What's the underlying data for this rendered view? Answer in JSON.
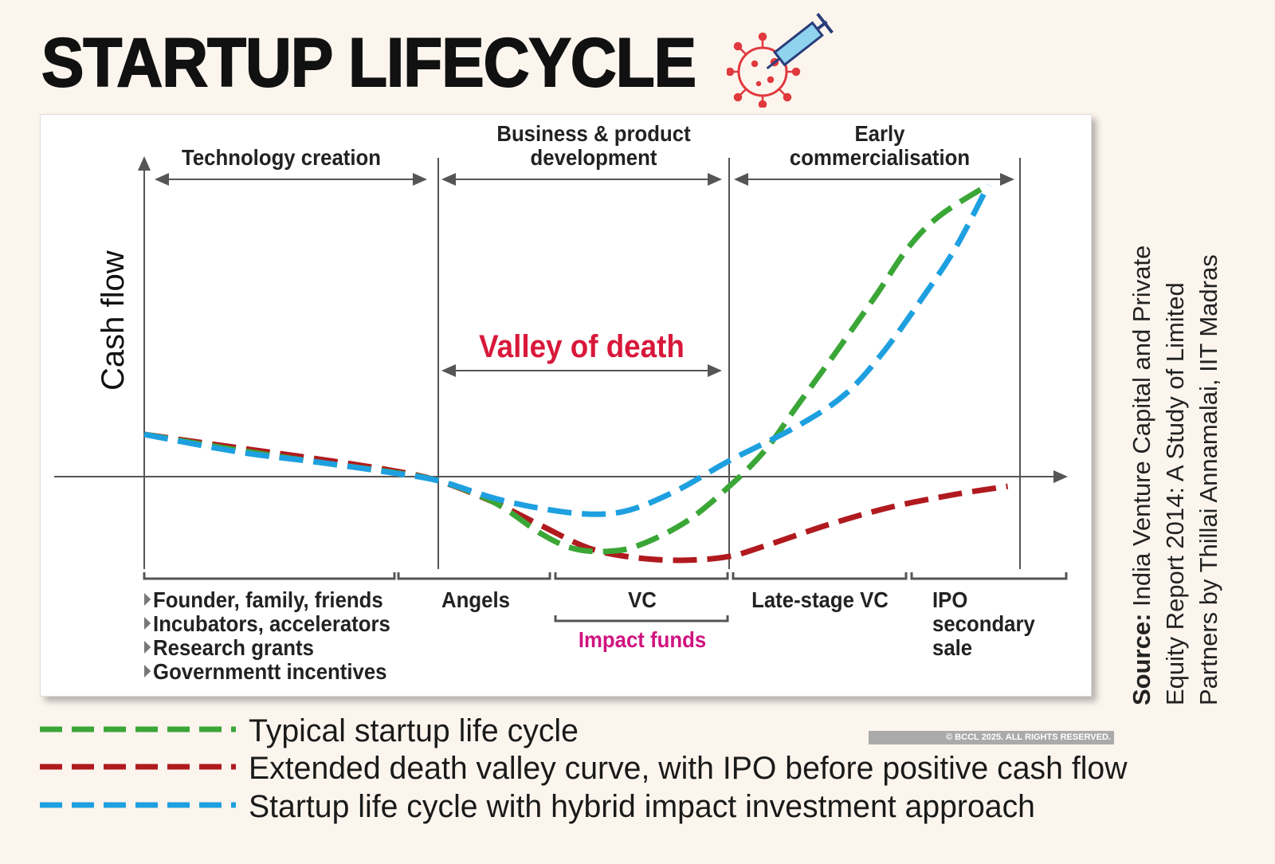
{
  "title": "STARTUP LIFECYCLE",
  "icons": {
    "title_icon": "virus-syringe-icon"
  },
  "chart_data": {
    "type": "line",
    "title": "STARTUP LIFECYCLE",
    "ylabel": "Cash flow",
    "xlabel": "",
    "xlim": [
      0,
      100
    ],
    "ylim": [
      -30,
      100
    ],
    "grid": false,
    "legend_placement": "bottom",
    "stages": [
      {
        "label": "Technology creation",
        "start": 0,
        "end": 33.6
      },
      {
        "label": "Business & product development",
        "line1": "Business & product",
        "line2": "development",
        "start": 33.6,
        "end": 66.8
      },
      {
        "label": "Early commercialisation",
        "line1": "Early",
        "line2": "commercialisation",
        "start": 66.8,
        "end": 100
      }
    ],
    "annotation": {
      "text": "Valley of death",
      "start": 33.6,
      "end": 66.8,
      "color": "#d8183a"
    },
    "funding": {
      "founder_items": [
        "Founder, family, friends",
        "Incubators, accelerators",
        "Research grants",
        "Governmentt incentives"
      ],
      "angels": "Angels",
      "vc": "VC",
      "impact": "Impact funds",
      "late_vc": "Late-stage VC",
      "ipo": [
        "IPO",
        "secondary",
        "sale"
      ]
    },
    "series": [
      {
        "name": "Typical startup life cycle",
        "color": "#3aa636",
        "x": [
          0,
          10.8,
          19.9,
          28.1,
          33.6,
          39.9,
          45.4,
          49.0,
          52.7,
          56.3,
          61.8,
          66.8,
          70.9,
          74.5,
          79.1,
          83.6,
          87.3,
          90.9,
          96.4
        ],
        "y": [
          14.4,
          9.0,
          4.9,
          1.6,
          -1.4,
          -8.7,
          -19.6,
          -24.5,
          -25.5,
          -23.6,
          -15.5,
          -3.3,
          9.0,
          23.9,
          42.9,
          62.0,
          78.3,
          89.1,
          99.5
        ]
      },
      {
        "name": "Extended death valley curve, with IPO before positive cash flow",
        "color": "#b01a1f",
        "x": [
          0,
          10.8,
          19.9,
          28.1,
          33.6,
          39.9,
          45.4,
          50.9,
          56.3,
          61.8,
          66.8,
          70.9,
          78.2,
          85.4,
          92.7,
          98.6
        ],
        "y": [
          14.4,
          9.8,
          6.0,
          2.2,
          -1.4,
          -8.7,
          -16.8,
          -24.5,
          -27.7,
          -28.5,
          -27.2,
          -23.6,
          -16.3,
          -10.3,
          -6.0,
          -3.3
        ]
      },
      {
        "name": "Startup life cycle with hybrid impact investment approach",
        "color": "#1ea0e0",
        "x": [
          0,
          10.8,
          19.9,
          28.1,
          33.6,
          39.9,
          45.4,
          50.9,
          55.4,
          60.9,
          66.8,
          74.5,
          80,
          84.5,
          89.1,
          92.7,
          96.4
        ],
        "y": [
          14.4,
          8.4,
          4.9,
          1.4,
          -1.4,
          -7.3,
          -10.9,
          -12.8,
          -11.4,
          -4.6,
          5.4,
          17.1,
          28,
          42.9,
          62,
          78.3,
          99.5
        ]
      }
    ]
  },
  "source": {
    "label": "Source:",
    "text": "India Venture Capital and Private Equity Report 2014: A Study of Limited Partners by Thillai Annamalai, IIT Madras"
  },
  "copyright": "© BCCL 2025. ALL RIGHTS RESERVED."
}
